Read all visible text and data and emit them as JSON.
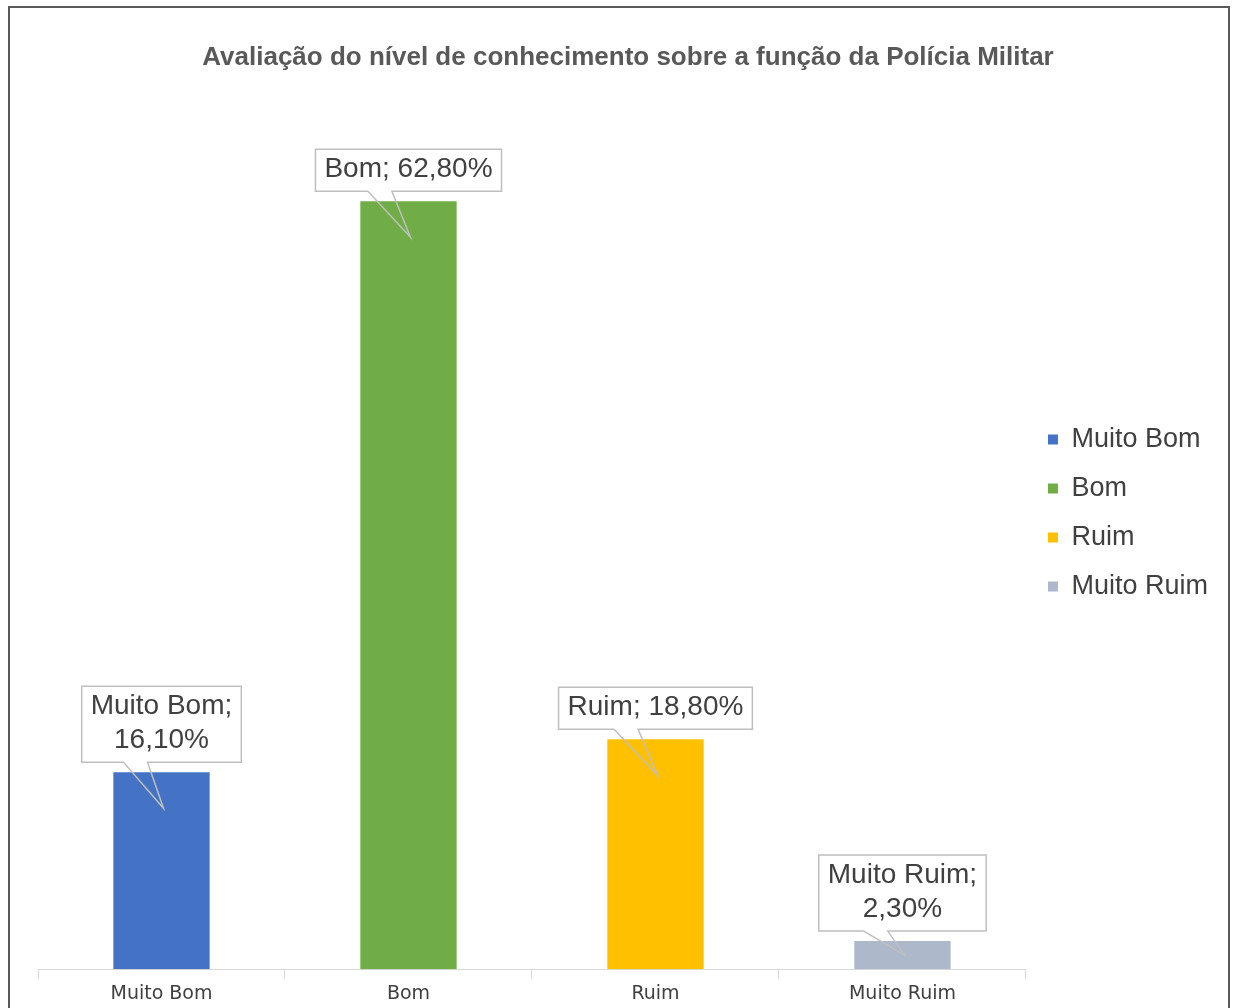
{
  "chart_data": {
    "type": "bar",
    "title": "Avaliação do nível de conhecimento sobre a função da Polícia Militar",
    "categories": [
      "Muito Bom",
      "Bom",
      "Ruim",
      "Muito Ruim"
    ],
    "series": [
      {
        "name": "Muito Bom",
        "color": "#4472c4",
        "values": [
          16.1,
          null,
          null,
          null
        ],
        "value_labels": [
          "Muito Bom; 16,10%",
          null,
          null,
          null
        ]
      },
      {
        "name": "Bom",
        "color": "#70ad47",
        "values": [
          null,
          62.8,
          null,
          null
        ],
        "value_labels": [
          null,
          "Bom; 62,80%",
          null,
          null
        ]
      },
      {
        "name": "Ruim",
        "color": "#ffc000",
        "values": [
          null,
          null,
          18.8,
          null
        ],
        "value_labels": [
          null,
          null,
          "Ruim; 18,80%",
          null
        ]
      },
      {
        "name": "Muito Ruim",
        "color": "#adb9ca",
        "values": [
          null,
          null,
          null,
          2.3
        ],
        "value_labels": [
          null,
          null,
          null,
          "Muito Ruim; 2,30%"
        ]
      }
    ],
    "legend": "right"
  }
}
